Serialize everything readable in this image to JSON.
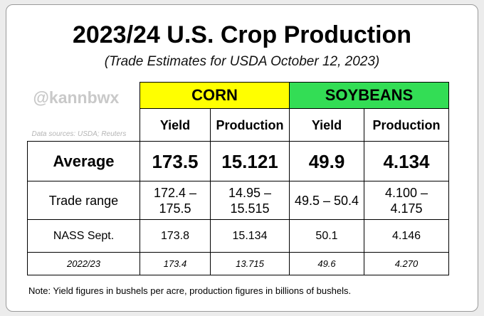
{
  "title": "2023/24 U.S. Crop Production",
  "subtitle": "(Trade Estimates for USDA October 12, 2023)",
  "watermark": "@kannbwx",
  "sources": "Data sources: USDA; Reuters",
  "table": {
    "groups": [
      "CORN",
      "SOYBEANS"
    ],
    "columns": [
      "Yield",
      "Production",
      "Yield",
      "Production"
    ],
    "rows": [
      [
        "Average",
        "173.5",
        "15.121",
        "49.9",
        "4.134"
      ],
      [
        "Trade range",
        "172.4 – 175.5",
        "14.95 – 15.515",
        "49.5 – 50.4",
        "4.100 – 4.175"
      ],
      [
        "NASS Sept.",
        "173.8",
        "15.134",
        "50.1",
        "4.146"
      ],
      [
        "2022/23",
        "173.4",
        "13.715",
        "49.6",
        "4.270"
      ]
    ]
  },
  "note": "Note: Yield figures in bushels per acre, production figures in billions of bushels."
}
